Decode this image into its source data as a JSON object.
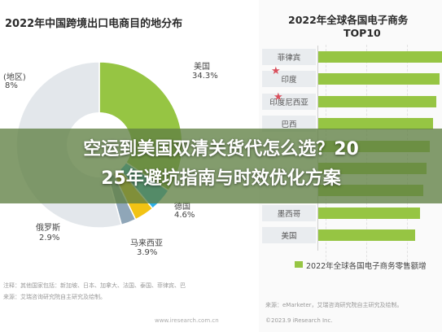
{
  "overlay": {
    "line1": "空运到美国双清关货代怎么选？20",
    "line2": "25年避坑指南与时效优化方案"
  },
  "chart_data": [
    {
      "type": "pie",
      "title": "2022年中国跨境出口电商目的地分布",
      "slices": [
        {
          "label": "美国",
          "value": 34.3,
          "display": "34.3%",
          "color": "#96c543"
        },
        {
          "label": "德国",
          "value": 4.6,
          "display": "4.6%",
          "color": "#2bb0e6"
        },
        {
          "label": "马来西亚",
          "value": 3.9,
          "display": "3.9%",
          "color": "#f2c314"
        },
        {
          "label": "俄罗斯",
          "value": 2.9,
          "display": "2.9%",
          "color": "#8fa6b8"
        },
        {
          "label": "其他",
          "value": 54.3,
          "display": "",
          "color": "#e3e7eb"
        }
      ],
      "partial_labels": {
        "other_name": "(地区)",
        "other_value": "8%"
      },
      "note": "注释：其他国家包括：新加坡、日本、加拿大、法国、泰国、菲律宾、巴",
      "source": "来源：艾瑞咨询研究院自主研究及绘制。",
      "watermark": "www.iresearch.com.cn"
    },
    {
      "type": "bar",
      "title": "2022年全球各国电子商务",
      "subtitle": "TOP10",
      "categories": [
        "菲律宾",
        "印度",
        "印度尼西亚",
        "巴西",
        "",
        "",
        "",
        "墨西哥",
        "美国"
      ],
      "values": [
        21.6,
        21.1,
        20.6,
        20.0,
        19.4,
        18.9,
        18.3,
        17.7,
        16.9
      ],
      "starred": [
        "菲律宾",
        "印度尼西亚"
      ],
      "legend": "2022年全球各国电子商务零售额增",
      "source": "来源：eMarketer，艾瑞咨询研究院自主研究及绘制。",
      "copyright": "©2023.9 iResearch Inc."
    }
  ]
}
